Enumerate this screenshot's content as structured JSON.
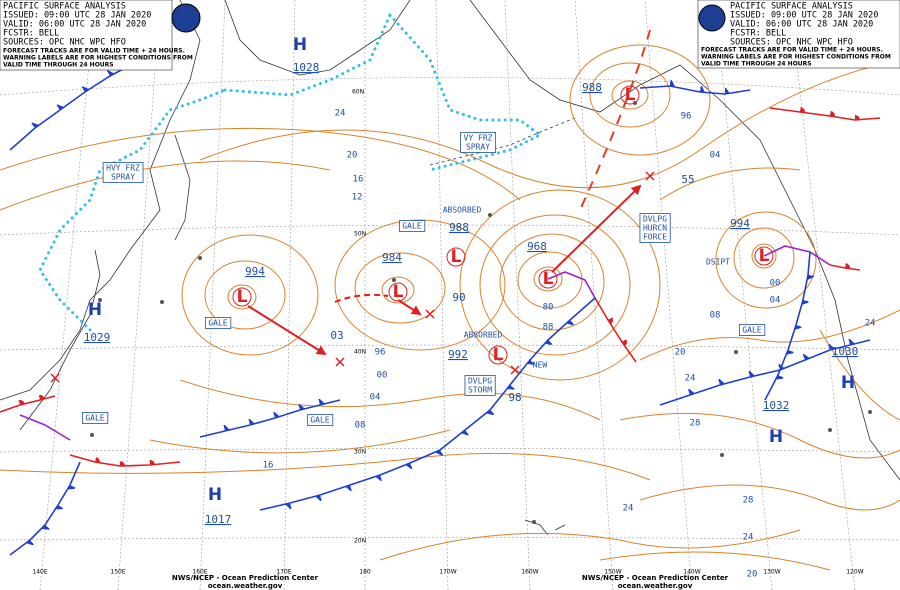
{
  "header_left": {
    "lines": [
      "PACIFIC SURFACE ANALYSIS",
      "ISSUED: 09:00 UTC 28 JAN 2020",
      "VALID: 06:00 UTC 28 JAN 2020",
      "FCSTR: BELL",
      "SOURCES: OPC NHC WPC HFO"
    ],
    "notes": [
      "FORECAST TRACKS ARE FOR VALID TIME + 24 HOURS.",
      "WARNING LABELS ARE FOR HIGHEST CONDITIONS FROM",
      "VALID TIME THROUGH 24 HOURS"
    ]
  },
  "header_right": {
    "lines": [
      "PACIFIC SURFACE ANALYSIS",
      "ISSUED: 09:00 UTC 28 JAN 2020",
      "VALID: 06:00 UTC 28 JAN 2020",
      "FCSTR: BELL",
      "SOURCES: OPC NHC WPC HFO"
    ],
    "notes": [
      "FORECAST TRACKS ARE FOR VALID TIME + 24 HOURS.",
      "WARNING LABELS ARE FOR HIGHEST CONDITIONS FROM",
      "VALID TIME THROUGH 24 HOURS"
    ]
  },
  "pressure_systems": [
    {
      "symbol": "H",
      "pressure": 1028
    },
    {
      "symbol": "H",
      "pressure": 1029
    },
    {
      "symbol": "H",
      "pressure": 1017
    },
    {
      "symbol": "H",
      "pressure": 1032
    },
    {
      "symbol": "H",
      "pressure": 1030
    },
    {
      "symbol": "L",
      "pressure": 994
    },
    {
      "symbol": "L",
      "pressure": 984
    },
    {
      "symbol": "L",
      "pressure": 988
    },
    {
      "symbol": "L",
      "pressure": 968
    },
    {
      "symbol": "L",
      "pressure": 988
    },
    {
      "symbol": "L",
      "pressure": 994
    },
    {
      "symbol": "L",
      "pressure": 992
    }
  ],
  "warnings": [
    {
      "lines": [
        "GALE"
      ]
    },
    {
      "lines": [
        "GALE"
      ]
    },
    {
      "lines": [
        "GALE"
      ]
    },
    {
      "lines": [
        "GALE"
      ]
    },
    {
      "lines": [
        "GALE"
      ]
    },
    {
      "lines": [
        "HVY FRZ",
        "SPRAY"
      ]
    },
    {
      "lines": [
        "VY FRZ",
        "SPRAY"
      ]
    },
    {
      "lines": [
        "DVLPG",
        "HURCN",
        "FORCE"
      ]
    },
    {
      "lines": [
        "DVLPG",
        "STORM"
      ]
    }
  ],
  "status_labels": [
    "ABSORBED",
    "ABSORBED",
    "NEW",
    "DSIPT"
  ],
  "isobar_labels": [
    "24",
    "20",
    "16",
    "12",
    "03",
    "96",
    "00",
    "04",
    "08",
    "16",
    "80",
    "88",
    "90",
    "98",
    "96",
    "04",
    "55",
    "00",
    "04",
    "08",
    "20",
    "24",
    "28",
    "24",
    "28",
    "24",
    "24",
    "20"
  ],
  "latitude_labels": [
    "60N",
    "50N",
    "40N",
    "30N",
    "20N"
  ],
  "longitude_labels": [
    "140E",
    "150E",
    "160E",
    "170E",
    "180",
    "170W",
    "160W",
    "150W",
    "140W",
    "130W",
    "120W"
  ],
  "footer_left": [
    "NWS/NCEP - Ocean Prediction Center",
    "ocean.weather.gov"
  ],
  "footer_right": [
    "NWS/NCEP - Ocean Prediction Center",
    "ocean.weather.gov"
  ]
}
